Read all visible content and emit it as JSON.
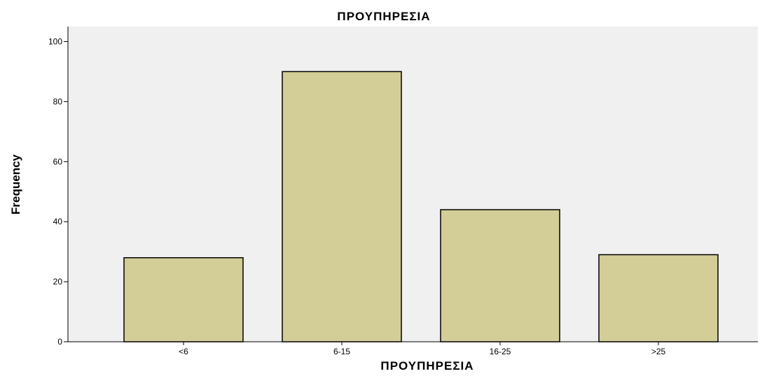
{
  "chart_data": {
    "type": "bar",
    "title": "ΠΡΟΥΠΗΡΕΣΙΑ",
    "xlabel": "ΠΡΟΥΠΗΡΕΣΙΑ",
    "ylabel": "Frequency",
    "categories": [
      "<6",
      "6-15",
      "16-25",
      ">25"
    ],
    "values": [
      28,
      90,
      44,
      29
    ],
    "ylim": [
      0,
      105
    ],
    "yticks": [
      0,
      20,
      40,
      60,
      80,
      100
    ],
    "grid": false,
    "colors": {
      "plot_background": "#f0f0f0",
      "bar_fill": "#d3cd97",
      "bar_stroke": "#000000"
    }
  }
}
